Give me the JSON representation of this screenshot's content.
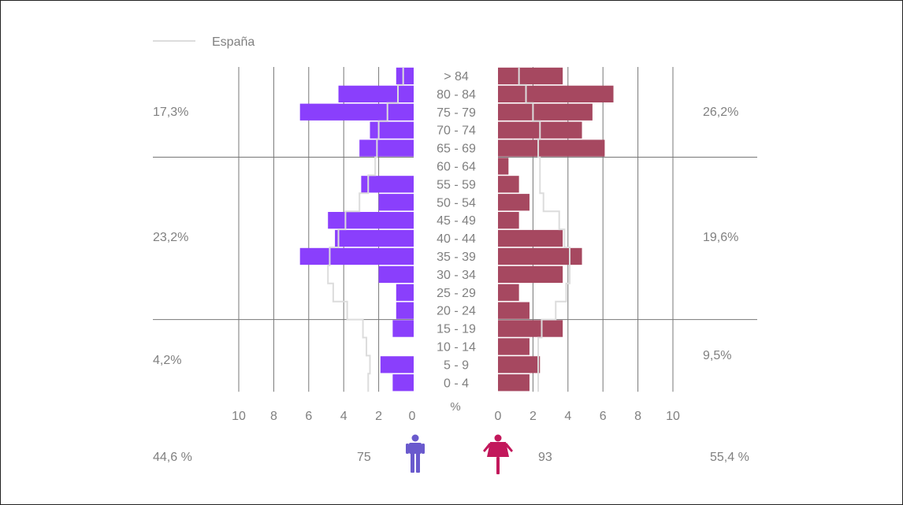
{
  "chart_data": {
    "type": "bar",
    "legend": {
      "label": "España",
      "position": "top-left"
    },
    "categories": [
      "> 84",
      "80 - 84",
      "75 - 79",
      "70 - 74",
      "65 - 69",
      "60 - 64",
      "55 - 59",
      "50 - 54",
      "45 - 49",
      "40 - 44",
      "35 - 39",
      "30 - 34",
      "25 - 29",
      "20 - 24",
      "15 - 19",
      "10 - 14",
      "5 - 9",
      "0 - 4"
    ],
    "series": [
      {
        "values": [
          1.0,
          4.3,
          6.5,
          2.5,
          3.1,
          0.0,
          3.0,
          2.0,
          4.9,
          4.5,
          6.5,
          2.0,
          1.0,
          1.0,
          1.2,
          0.0,
          1.9,
          1.2
        ]
      },
      {
        "values": [
          3.7,
          6.6,
          5.4,
          4.8,
          6.1,
          0.6,
          1.2,
          1.8,
          1.2,
          3.7,
          4.8,
          3.7,
          1.2,
          1.8,
          3.7,
          1.8,
          2.4,
          1.8
        ]
      }
    ],
    "reference": {
      "label": "España",
      "male": [
        0.6,
        0.9,
        1.5,
        2.0,
        2.1,
        2.2,
        2.6,
        3.1,
        3.9,
        4.3,
        4.8,
        4.9,
        4.6,
        3.8,
        2.9,
        2.7,
        2.5,
        2.6
      ],
      "female": [
        1.2,
        1.6,
        2.0,
        2.4,
        2.3,
        2.4,
        2.4,
        2.6,
        3.5,
        3.8,
        4.1,
        4.1,
        3.9,
        3.3,
        2.5,
        2.3,
        2.3,
        2.3
      ]
    },
    "xticks": [
      "10",
      "8",
      "6",
      "4",
      "2",
      "0",
      "0",
      "2",
      "4",
      "6",
      "8",
      "10"
    ],
    "xunit": "%",
    "xlim": [
      0,
      10
    ],
    "group_percent_labels": {
      "left": [
        "17,3%",
        "23,2%",
        "4,2%"
      ],
      "right": [
        "26,2%",
        "19,6%",
        "9,5%"
      ]
    },
    "totals": {
      "male_percent": "44,6 %",
      "male_count": "75",
      "female_count": "93",
      "female_percent": "55,4 %"
    },
    "colors": {
      "male": "#8a3ffc",
      "female": "#a64860",
      "male_icon": "#6a5acd",
      "female_icon": "#c2185b",
      "reference_line": "#dcdcdc",
      "grid": "#777777",
      "text": "#808080"
    }
  }
}
